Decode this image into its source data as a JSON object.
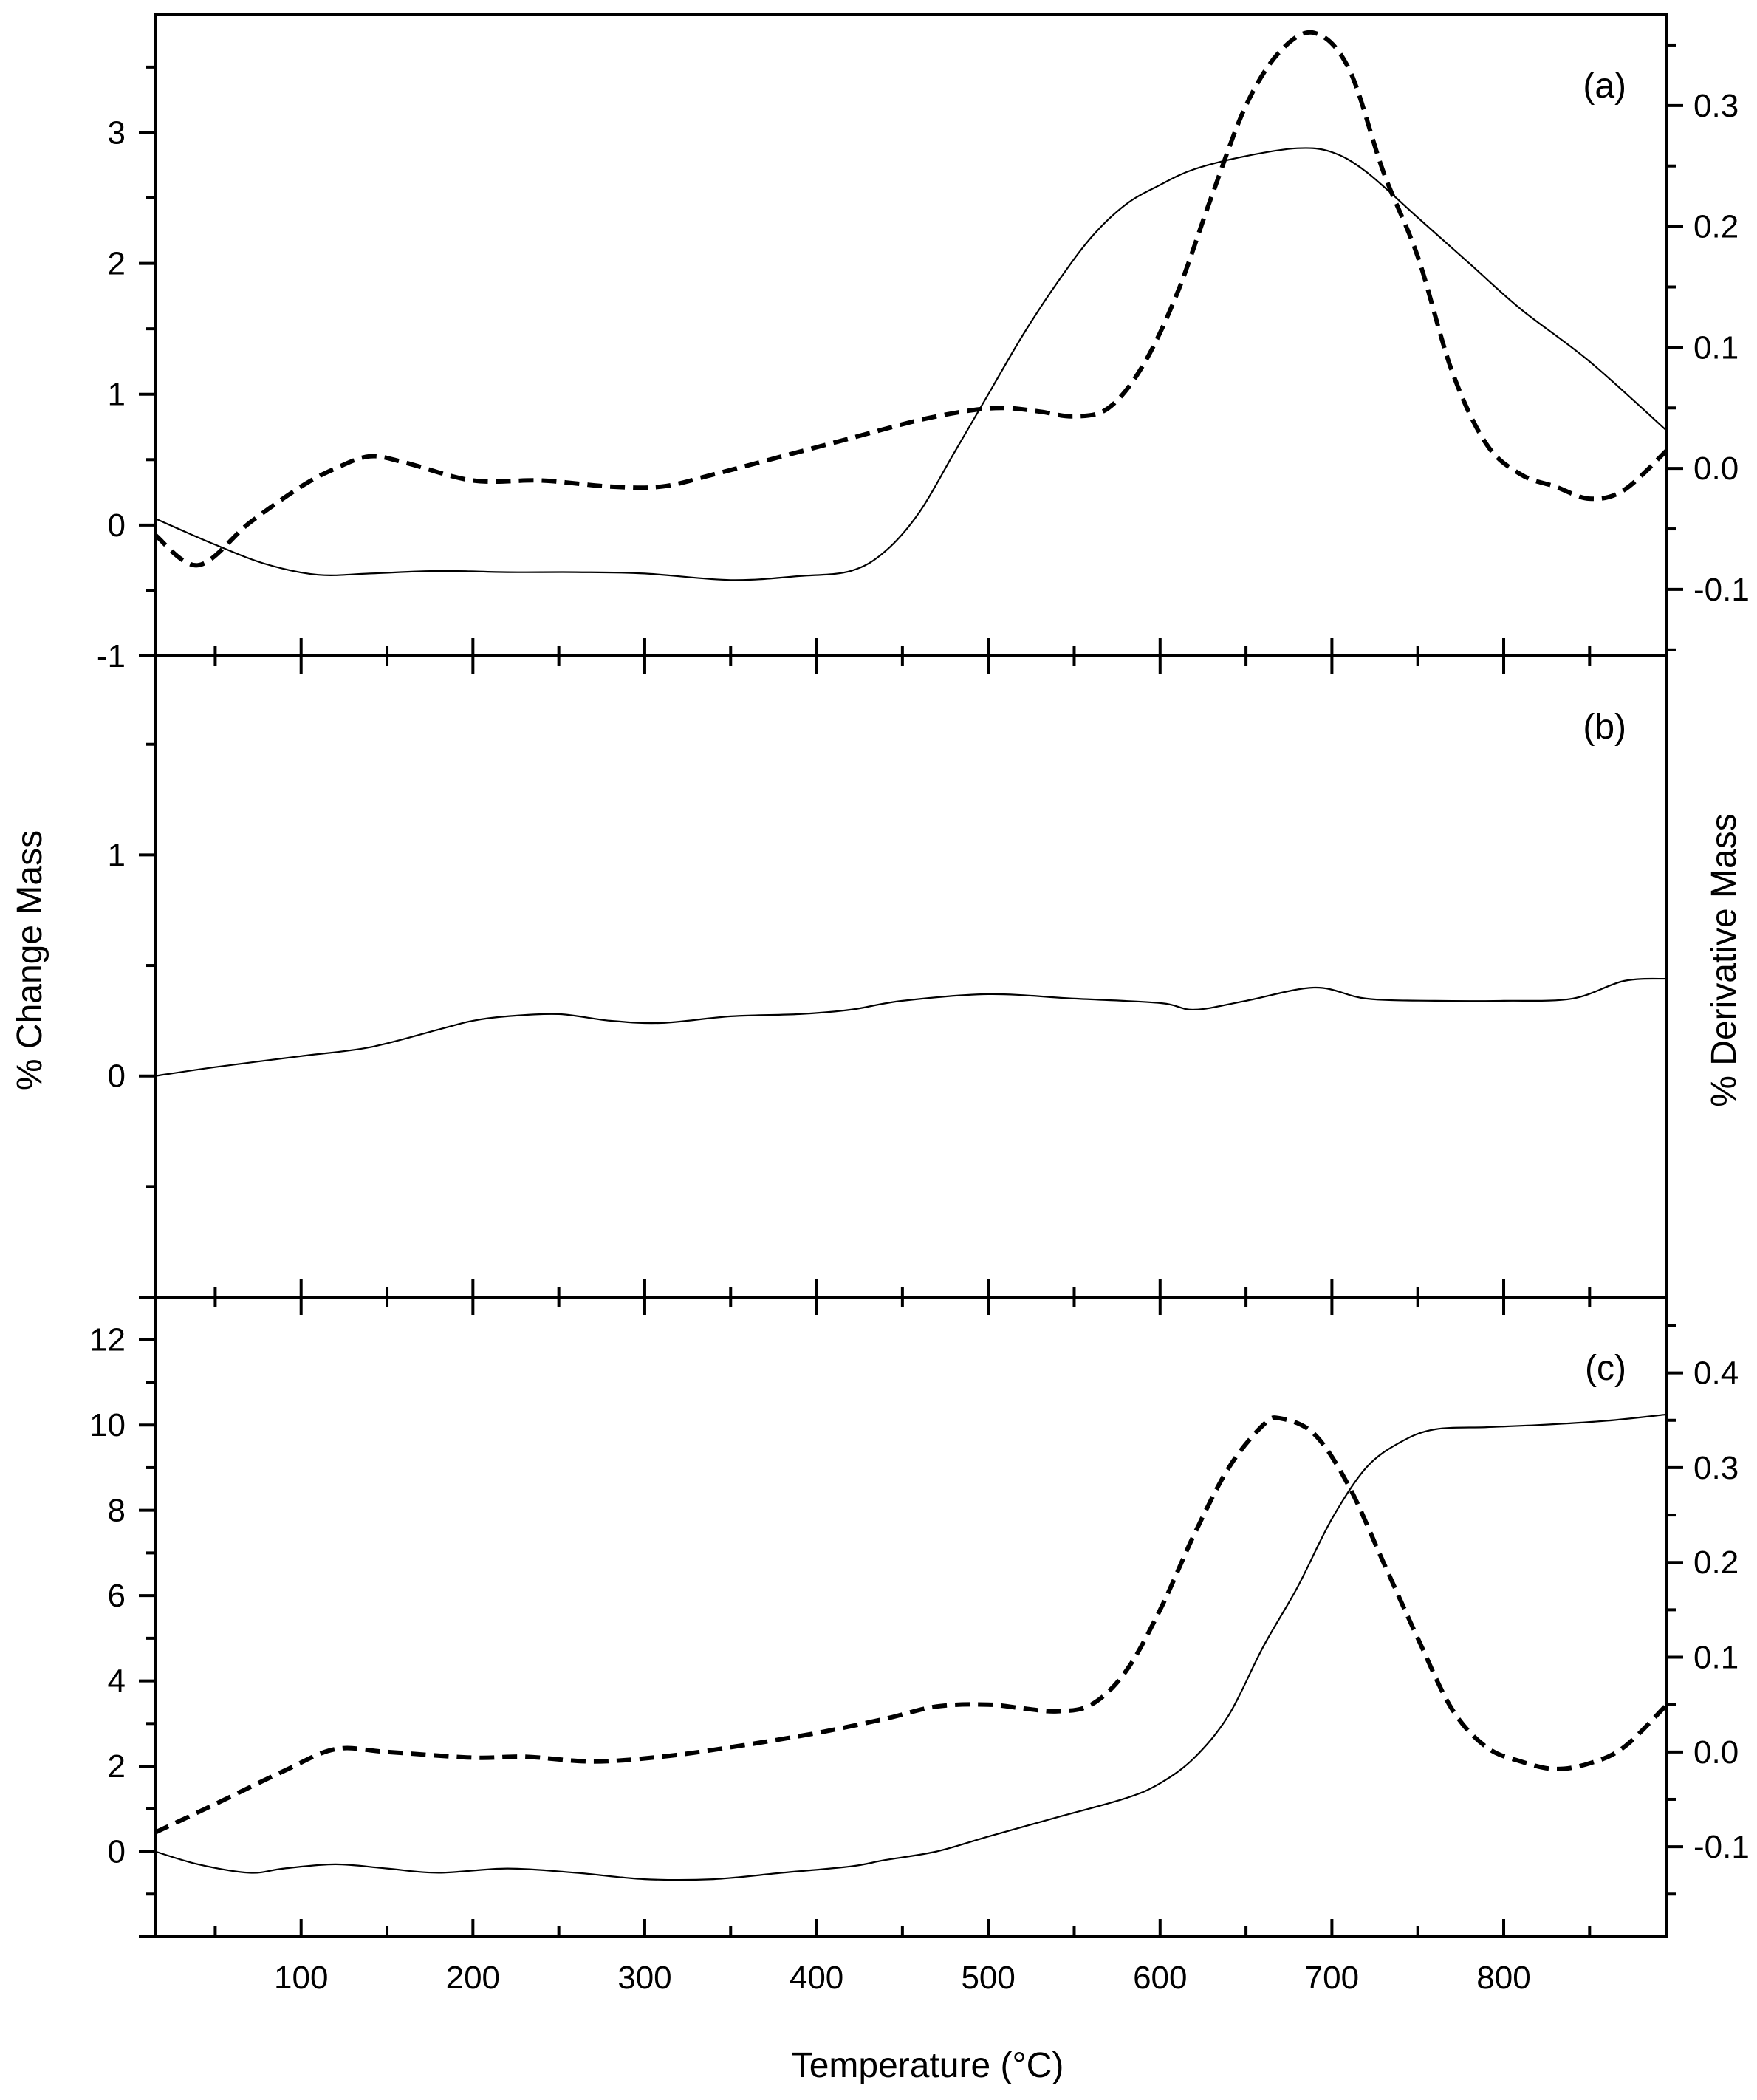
{
  "chart_data": {
    "type": "line",
    "title": "",
    "xlabel": "Temperature (°C)",
    "ylabel_left": "% Change Mass",
    "ylabel_right": "% Derivative Mass",
    "x_range": [
      15,
      895
    ],
    "x_ticks": [
      100,
      200,
      300,
      400,
      500,
      600,
      700,
      800
    ],
    "x_tick_labels": [
      "100",
      "200",
      "300",
      "400",
      "500",
      "600",
      "700",
      "800"
    ],
    "grid": false,
    "legend": "none",
    "line_color": "#000000",
    "panels": [
      {
        "id": "a",
        "label": "(a)",
        "y_left": {
          "range": [
            -1,
            3.9
          ],
          "ticks": [
            -1,
            0,
            1,
            2,
            3
          ],
          "tick_labels": [
            "-1",
            "0",
            "1",
            "2",
            "3"
          ]
        },
        "y_right": {
          "range": [
            -0.155,
            0.375
          ],
          "ticks": [
            -0.1,
            0.0,
            0.1,
            0.2,
            0.3
          ],
          "tick_labels": [
            "-0.1",
            "0.0",
            "0.1",
            "0.2",
            "0.3"
          ]
        },
        "series": [
          {
            "name": "% Change Mass",
            "axis": "left",
            "style": "solid",
            "x": [
              15,
              50,
              80,
              110,
              140,
              180,
              220,
              260,
              300,
              350,
              390,
              420,
              440,
              460,
              480,
              500,
              520,
              540,
              560,
              580,
              600,
              620,
              650,
              680,
              700,
              720,
              750,
              780,
              810,
              850,
              895
            ],
            "y": [
              0.05,
              -0.15,
              -0.3,
              -0.38,
              -0.37,
              -0.35,
              -0.36,
              -0.36,
              -0.37,
              -0.42,
              -0.39,
              -0.35,
              -0.2,
              0.1,
              0.55,
              1.0,
              1.45,
              1.85,
              2.2,
              2.45,
              2.6,
              2.72,
              2.82,
              2.88,
              2.85,
              2.7,
              2.35,
              2.0,
              1.65,
              1.25,
              0.72
            ]
          },
          {
            "name": "% Derivative Mass",
            "axis": "right",
            "style": "dashed",
            "x": [
              15,
              40,
              70,
              100,
              120,
              140,
              160,
              200,
              240,
              280,
              310,
              340,
              380,
              420,
              460,
              490,
              510,
              530,
              550,
              570,
              590,
              610,
              630,
              650,
              670,
              690,
              710,
              730,
              750,
              770,
              790,
              810,
              830,
              850,
              870,
              895
            ],
            "y": [
              -0.055,
              -0.08,
              -0.045,
              -0.015,
              0.0,
              0.01,
              0.005,
              -0.01,
              -0.01,
              -0.015,
              -0.015,
              -0.005,
              0.01,
              0.025,
              0.04,
              0.048,
              0.05,
              0.047,
              0.043,
              0.05,
              0.085,
              0.145,
              0.225,
              0.3,
              0.345,
              0.36,
              0.33,
              0.245,
              0.175,
              0.08,
              0.02,
              -0.005,
              -0.015,
              -0.025,
              -0.018,
              0.015
            ]
          }
        ]
      },
      {
        "id": "b",
        "label": "(b)",
        "y_left": {
          "range": [
            -1,
            1.9
          ],
          "ticks": [
            0,
            1
          ],
          "tick_labels": [
            "0",
            "1"
          ]
        },
        "series": [
          {
            "name": "% Change Mass",
            "axis": "left",
            "style": "solid",
            "x": [
              15,
              50,
              100,
              140,
              180,
              200,
              220,
              250,
              280,
              310,
              350,
              390,
              420,
              450,
              500,
              550,
              600,
              620,
              650,
              690,
              720,
              760,
              800,
              840,
              870,
              895
            ],
            "y": [
              0.0,
              0.04,
              0.09,
              0.13,
              0.21,
              0.25,
              0.27,
              0.28,
              0.25,
              0.24,
              0.27,
              0.28,
              0.3,
              0.34,
              0.37,
              0.35,
              0.33,
              0.3,
              0.34,
              0.4,
              0.35,
              0.34,
              0.34,
              0.35,
              0.43,
              0.44
            ]
          }
        ]
      },
      {
        "id": "c",
        "label": "(c)",
        "y_left": {
          "range": [
            -2,
            13
          ],
          "ticks": [
            0,
            2,
            4,
            6,
            8,
            10,
            12
          ],
          "tick_labels": [
            "0",
            "2",
            "4",
            "6",
            "8",
            "10",
            "12"
          ]
        },
        "y_right": {
          "range": [
            -0.195,
            0.48
          ],
          "ticks": [
            -0.1,
            0.0,
            0.1,
            0.2,
            0.3,
            0.4
          ],
          "tick_labels": [
            "-0.1",
            "0.0",
            "0.1",
            "0.2",
            "0.3",
            "0.4"
          ]
        },
        "series": [
          {
            "name": "% Change Mass",
            "axis": "left",
            "style": "solid",
            "x": [
              15,
              40,
              70,
              90,
              120,
              150,
              180,
              220,
              260,
              300,
              340,
              380,
              420,
              440,
              470,
              500,
              540,
              580,
              600,
              620,
              640,
              660,
              680,
              700,
              720,
              740,
              760,
              790,
              820,
              860,
              895
            ],
            "y": [
              0.0,
              -0.3,
              -0.5,
              -0.4,
              -0.3,
              -0.4,
              -0.5,
              -0.4,
              -0.5,
              -0.65,
              -0.65,
              -0.5,
              -0.35,
              -0.2,
              0.0,
              0.35,
              0.8,
              1.25,
              1.6,
              2.2,
              3.2,
              4.8,
              6.2,
              7.8,
              9.0,
              9.6,
              9.9,
              9.95,
              10.0,
              10.1,
              10.25
            ]
          },
          {
            "name": "% Derivative Mass",
            "axis": "right",
            "style": "dashed",
            "x": [
              15,
              50,
              90,
              120,
              150,
              200,
              230,
              270,
              310,
              350,
              400,
              440,
              470,
              500,
              520,
              540,
              560,
              580,
              600,
              620,
              640,
              660,
              670,
              690,
              710,
              730,
              750,
              770,
              790,
              810,
              830,
              850,
              870,
              895
            ],
            "y": [
              -0.085,
              -0.055,
              -0.02,
              0.003,
              0.0,
              -0.006,
              -0.005,
              -0.01,
              -0.005,
              0.005,
              0.02,
              0.035,
              0.048,
              0.05,
              0.046,
              0.043,
              0.05,
              0.085,
              0.15,
              0.23,
              0.3,
              0.345,
              0.352,
              0.335,
              0.28,
              0.2,
              0.12,
              0.045,
              0.005,
              -0.01,
              -0.018,
              -0.012,
              0.005,
              0.05
            ]
          }
        ]
      }
    ]
  }
}
